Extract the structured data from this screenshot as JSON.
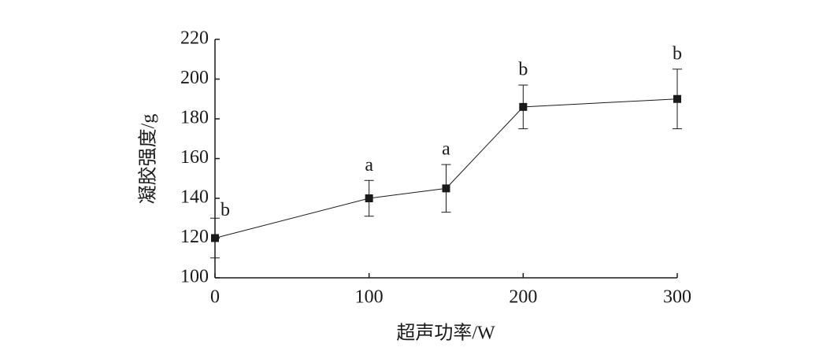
{
  "chart_data": {
    "type": "line",
    "x_label": "超声功率/W",
    "y_label": "凝胶强度/g",
    "x": [
      0,
      100,
      150,
      200,
      300
    ],
    "values": [
      120,
      140,
      145,
      186,
      190
    ],
    "errors": [
      10,
      9,
      12,
      11,
      15
    ],
    "labels": [
      "b",
      "a",
      "a",
      "b",
      "b"
    ],
    "color": "#1a1a1a",
    "xlim": [
      0,
      300
    ],
    "xticks": [
      0,
      100,
      200,
      300
    ],
    "ylim": [
      100,
      220
    ],
    "yticks": [
      100,
      120,
      140,
      160,
      180,
      200,
      220
    ]
  }
}
